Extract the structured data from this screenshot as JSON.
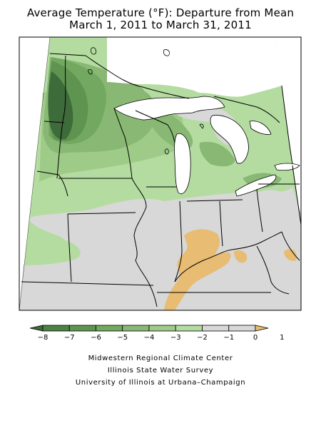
{
  "title": {
    "line1": "Average Temperature (°F): Departure from Mean",
    "line2": "March 1, 2011 to March 31, 2011"
  },
  "legend": {
    "ticks": [
      "-8",
      "-7",
      "-6",
      "-5",
      "-4",
      "-3",
      "-2",
      "-1",
      "0",
      "1"
    ],
    "colors": [
      "#3e6b3a",
      "#4e8244",
      "#5e9450",
      "#72a85f",
      "#88b873",
      "#9ecb88",
      "#b4dca0",
      "#d8d8d8",
      "#d8d8d8",
      "#e8bc72"
    ]
  },
  "palette": {
    "below_minus_7": "#3e6b3a",
    "minus_6": "#5e9450",
    "minus_4": "#88b873",
    "minus_3": "#9ecb88",
    "minus_2": "#b4dca0",
    "near_zero": "#d8d8d8",
    "plus_0_to_1": "#e8bc72",
    "water": "#ffffff",
    "border": "#000000"
  },
  "credits": {
    "line1": "Midwestern Regional Climate Center",
    "line2": "Illinois State Water Survey",
    "line3": "University of Illinois at Urbana–Champaign"
  }
}
